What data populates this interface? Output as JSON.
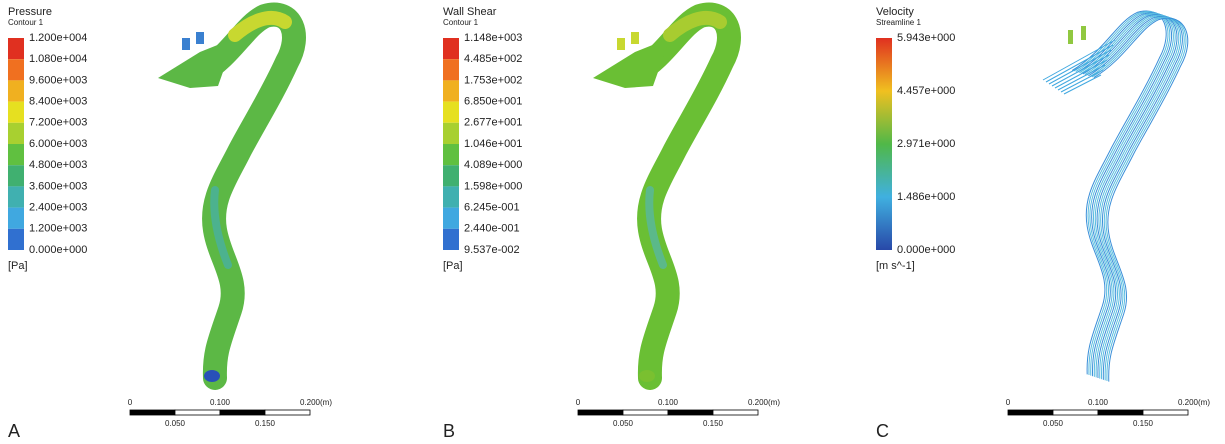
{
  "panels": [
    {
      "letter": "A",
      "legend": {
        "title": "Pressure",
        "subtitle": "Contour 1",
        "labels": [
          "1.200e+004",
          "1.080e+004",
          "9.600e+003",
          "8.400e+003",
          "7.200e+003",
          "6.000e+003",
          "4.800e+003",
          "3.600e+003",
          "2.400e+003",
          "1.200e+003",
          "0.000e+000"
        ],
        "unit": "[Pa]"
      },
      "scale": {
        "ticks_top": [
          "0",
          "0.100",
          "0.200"
        ],
        "ticks_bottom": [
          "0.050",
          "0.150"
        ],
        "unit": "(m)"
      }
    },
    {
      "letter": "B",
      "legend": {
        "title": "Wall Shear",
        "subtitle": "Contour 1",
        "labels": [
          "1.148e+003",
          "4.485e+002",
          "1.753e+002",
          "6.850e+001",
          "2.677e+001",
          "1.046e+001",
          "4.089e+000",
          "1.598e+000",
          "6.245e-001",
          "2.440e-001",
          "9.537e-002"
        ],
        "unit": "[Pa]"
      },
      "scale": {
        "ticks_top": [
          "0",
          "0.100",
          "0.200"
        ],
        "ticks_bottom": [
          "0.050",
          "0.150"
        ],
        "unit": "(m)"
      }
    },
    {
      "letter": "C",
      "legend": {
        "title": "Velocity",
        "subtitle": "Streamline 1",
        "labels": [
          "5.943e+000",
          "4.457e+000",
          "2.971e+000",
          "1.486e+000",
          "0.000e+000"
        ],
        "unit": "[m s^-1]"
      },
      "scale": {
        "ticks_top": [
          "0",
          "0.100",
          "0.200"
        ],
        "ticks_bottom": [
          "0.050",
          "0.150"
        ],
        "unit": "(m)"
      }
    }
  ]
}
